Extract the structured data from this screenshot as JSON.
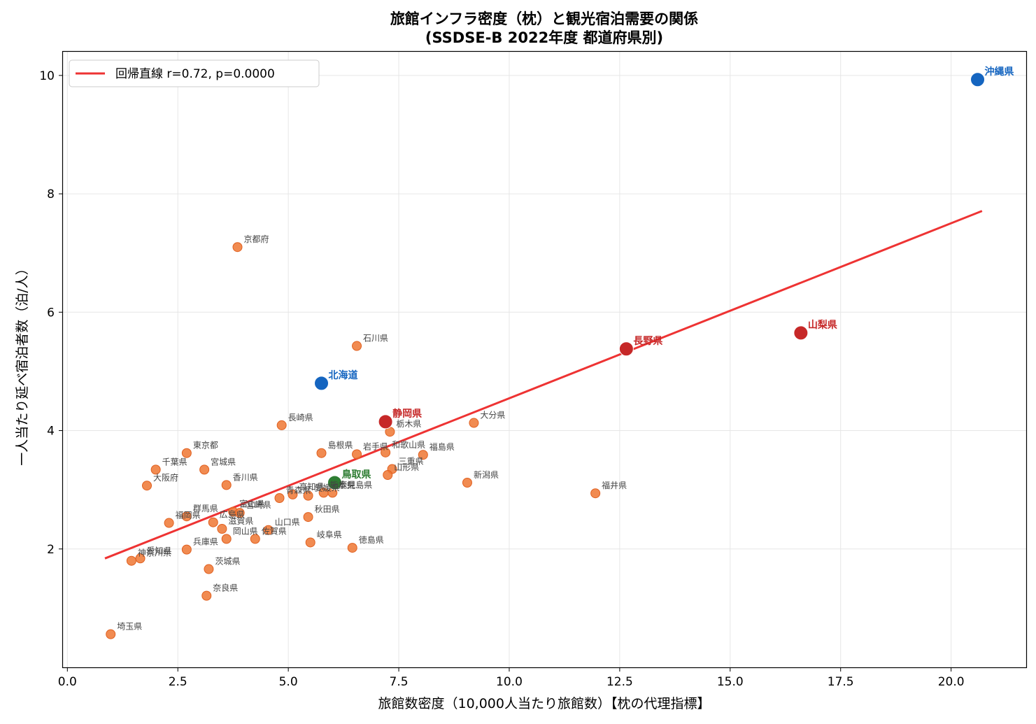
{
  "chart_data": {
    "type": "scatter",
    "title_line1": "旅館インフラ密度（枕）と観光宿泊需要の関係",
    "title_line2": "(SSDSE-B 2022年度 都道府県別)",
    "xlabel": "旅館数密度（10,000人当たり旅館数）【枕の代理指標】",
    "ylabel": "一人当たり延べ宿泊者数（泊/人）",
    "xlim": [
      -0.1,
      21.7
    ],
    "ylim": [
      0.0,
      10.4
    ],
    "xticks": [
      0.0,
      2.5,
      5.0,
      7.5,
      10.0,
      12.5,
      15.0,
      17.5,
      20.0
    ],
    "xtick_labels": [
      "0.0",
      "2.5",
      "5.0",
      "7.5",
      "10.0",
      "12.5",
      "15.0",
      "17.5",
      "20.0"
    ],
    "yticks": [
      2,
      4,
      6,
      8,
      10
    ],
    "ytick_labels": [
      "2",
      "4",
      "6",
      "8",
      "10"
    ],
    "grid": true,
    "legend": {
      "placement": "upper-left",
      "label": "回帰直線  r=0.72, p=0.0000"
    },
    "regression": {
      "x": [
        0.85,
        20.7
      ],
      "y": [
        1.84,
        7.71
      ],
      "color": "#EE3333"
    },
    "colors": {
      "default": "#EE7733",
      "blue": "#1565C0",
      "red": "#C62828",
      "green": "#2E7D32"
    },
    "points": [
      {
        "name": "沖縄県",
        "x": 20.6,
        "y": 9.93,
        "group": "blue"
      },
      {
        "name": "北海道",
        "x": 5.75,
        "y": 4.8,
        "group": "blue"
      },
      {
        "name": "長野県",
        "x": 12.65,
        "y": 5.38,
        "group": "red"
      },
      {
        "name": "山梨県",
        "x": 16.6,
        "y": 5.65,
        "group": "red"
      },
      {
        "name": "静岡県",
        "x": 7.2,
        "y": 4.15,
        "group": "red"
      },
      {
        "name": "鳥取県",
        "x": 6.05,
        "y": 3.12,
        "group": "green"
      },
      {
        "name": "京都府",
        "x": 3.85,
        "y": 7.1,
        "group": "default"
      },
      {
        "name": "石川県",
        "x": 6.55,
        "y": 5.43,
        "group": "default"
      },
      {
        "name": "長崎県",
        "x": 4.85,
        "y": 4.09,
        "group": "default"
      },
      {
        "name": "栃木県",
        "x": 7.3,
        "y": 3.98,
        "group": "default"
      },
      {
        "name": "大分県",
        "x": 9.2,
        "y": 4.13,
        "group": "default"
      },
      {
        "name": "島根県",
        "x": 5.75,
        "y": 3.62,
        "group": "default"
      },
      {
        "name": "岩手県",
        "x": 6.55,
        "y": 3.6,
        "group": "default"
      },
      {
        "name": "和歌山県",
        "x": 7.2,
        "y": 3.63,
        "group": "default"
      },
      {
        "name": "福島県",
        "x": 8.05,
        "y": 3.59,
        "group": "default"
      },
      {
        "name": "三重県",
        "x": 7.35,
        "y": 3.35,
        "group": "default"
      },
      {
        "name": "山形県",
        "x": 7.25,
        "y": 3.25,
        "group": "default"
      },
      {
        "name": "新潟県",
        "x": 9.05,
        "y": 3.12,
        "group": "default"
      },
      {
        "name": "福井県",
        "x": 11.95,
        "y": 2.94,
        "group": "default"
      },
      {
        "name": "東京都",
        "x": 2.7,
        "y": 3.62,
        "group": "default"
      },
      {
        "name": "千葉県",
        "x": 2.0,
        "y": 3.34,
        "group": "default"
      },
      {
        "name": "宮城県",
        "x": 3.1,
        "y": 3.34,
        "group": "default"
      },
      {
        "name": "大阪府",
        "x": 1.8,
        "y": 3.07,
        "group": "default"
      },
      {
        "name": "香川県",
        "x": 3.6,
        "y": 3.08,
        "group": "default"
      },
      {
        "name": "青森県",
        "x": 4.8,
        "y": 2.86,
        "group": "default"
      },
      {
        "name": "高知県",
        "x": 5.1,
        "y": 2.92,
        "group": "default"
      },
      {
        "name": "愛媛県",
        "x": 5.45,
        "y": 2.9,
        "group": "default"
      },
      {
        "name": "熊本県",
        "x": 5.8,
        "y": 2.95,
        "group": "default"
      },
      {
        "name": "鹿児島県",
        "x": 6.0,
        "y": 2.95,
        "group": "default"
      },
      {
        "name": "秋田県",
        "x": 5.45,
        "y": 2.54,
        "group": "default"
      },
      {
        "name": "富山県",
        "x": 3.75,
        "y": 2.63,
        "group": "default"
      },
      {
        "name": "宮崎県",
        "x": 3.9,
        "y": 2.61,
        "group": "default"
      },
      {
        "name": "広島県",
        "x": 3.3,
        "y": 2.45,
        "group": "default"
      },
      {
        "name": "福岡県",
        "x": 2.3,
        "y": 2.44,
        "group": "default"
      },
      {
        "name": "群馬県",
        "x": 2.7,
        "y": 2.55,
        "group": "default"
      },
      {
        "name": "滋賀県",
        "x": 3.5,
        "y": 2.34,
        "group": "default"
      },
      {
        "name": "山口県",
        "x": 4.55,
        "y": 2.32,
        "group": "default"
      },
      {
        "name": "岡山県",
        "x": 3.6,
        "y": 2.17,
        "group": "default"
      },
      {
        "name": "佐賀県",
        "x": 4.25,
        "y": 2.17,
        "group": "default"
      },
      {
        "name": "岐阜県",
        "x": 5.5,
        "y": 2.11,
        "group": "default"
      },
      {
        "name": "徳島県",
        "x": 6.45,
        "y": 2.02,
        "group": "default"
      },
      {
        "name": "兵庫県",
        "x": 2.7,
        "y": 1.99,
        "group": "default"
      },
      {
        "name": "愛知県",
        "x": 1.65,
        "y": 1.84,
        "group": "default"
      },
      {
        "name": "神奈川県",
        "x": 1.45,
        "y": 1.8,
        "group": "default"
      },
      {
        "name": "茨城県",
        "x": 3.2,
        "y": 1.66,
        "group": "default"
      },
      {
        "name": "奈良県",
        "x": 3.15,
        "y": 1.21,
        "group": "default"
      },
      {
        "name": "埼玉県",
        "x": 0.98,
        "y": 0.56,
        "group": "default"
      }
    ]
  }
}
